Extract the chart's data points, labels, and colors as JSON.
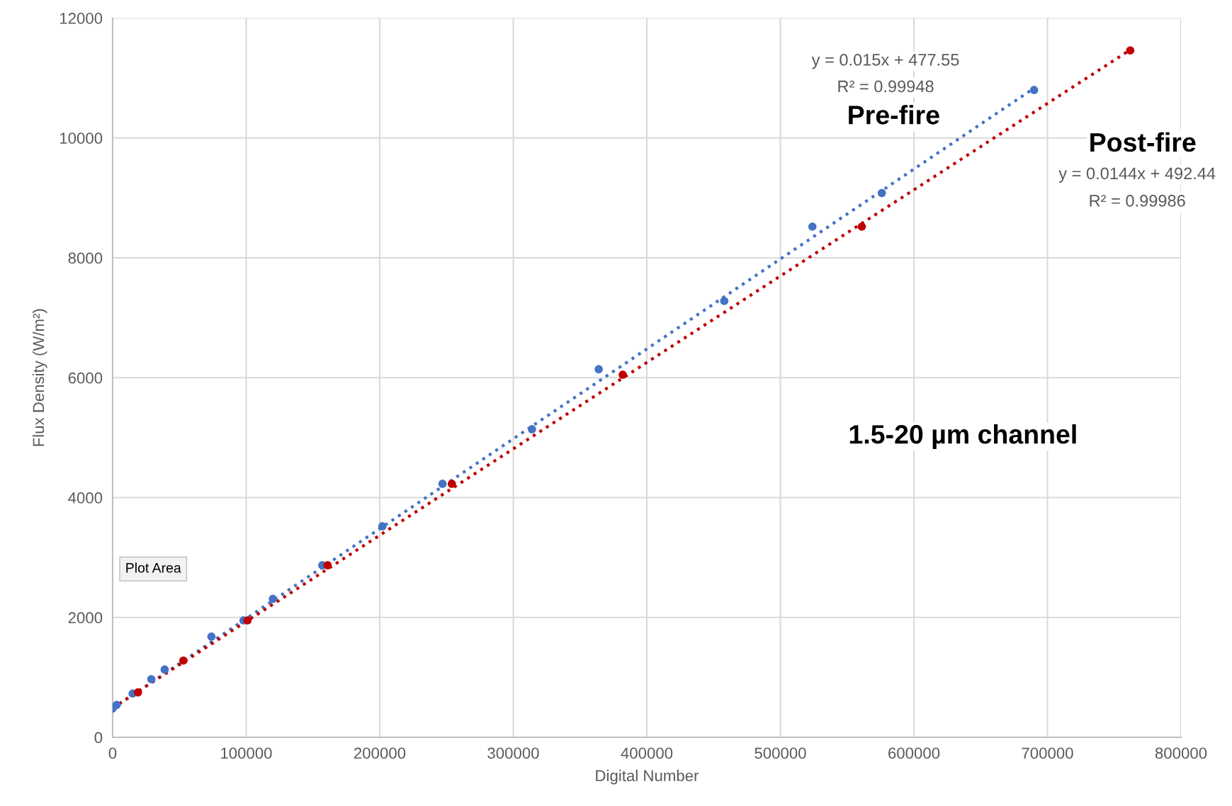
{
  "chart_data": {
    "type": "scatter",
    "xlabel": "Digital Number",
    "ylabel": "Flux Density (W/m²)",
    "xlim": [
      0,
      800000
    ],
    "ylim": [
      0,
      12000
    ],
    "xticks": [
      0,
      100000,
      200000,
      300000,
      400000,
      500000,
      600000,
      700000,
      800000
    ],
    "yticks": [
      0,
      2000,
      4000,
      6000,
      8000,
      10000,
      12000
    ],
    "grid": true,
    "marker": "circle",
    "series": [
      {
        "color": "#4472c4",
        "x": [
          0,
          3000,
          15000,
          29000,
          39000,
          74000,
          98000,
          120000,
          157000,
          202000,
          247000,
          314000,
          364000,
          458000,
          524000,
          576000,
          690000
        ],
        "values": [
          480,
          540,
          730,
          970,
          1130,
          1680,
          1950,
          2310,
          2870,
          3520,
          4230,
          5140,
          6140,
          7280,
          8520,
          9080,
          10800
        ]
      },
      {
        "color": "#c00000",
        "x": [
          19000,
          53000,
          101000,
          161000,
          254000,
          382000,
          561000,
          762000
        ],
        "values": [
          750,
          1280,
          1950,
          2870,
          4230,
          6050,
          8520,
          11460
        ]
      },
      {
        "type": "line",
        "color": "#4472c4",
        "line_style": "dotted",
        "marker": "none",
        "x": [
          0,
          690000
        ],
        "values": [
          480,
          10830
        ]
      },
      {
        "type": "line",
        "color": "#c00000",
        "line_style": "dotted",
        "marker": "none",
        "x": [
          0,
          762000
        ],
        "values": [
          490,
          11470
        ]
      }
    ],
    "annotations": [
      "y = 0.015x + 477.55",
      "R² = 0.99948",
      "Pre-fire",
      "Post-fire",
      "y = 0.0144x + 492.44",
      "R² = 0.99986",
      "1.5-20 µm channel",
      "Plot Area"
    ]
  }
}
